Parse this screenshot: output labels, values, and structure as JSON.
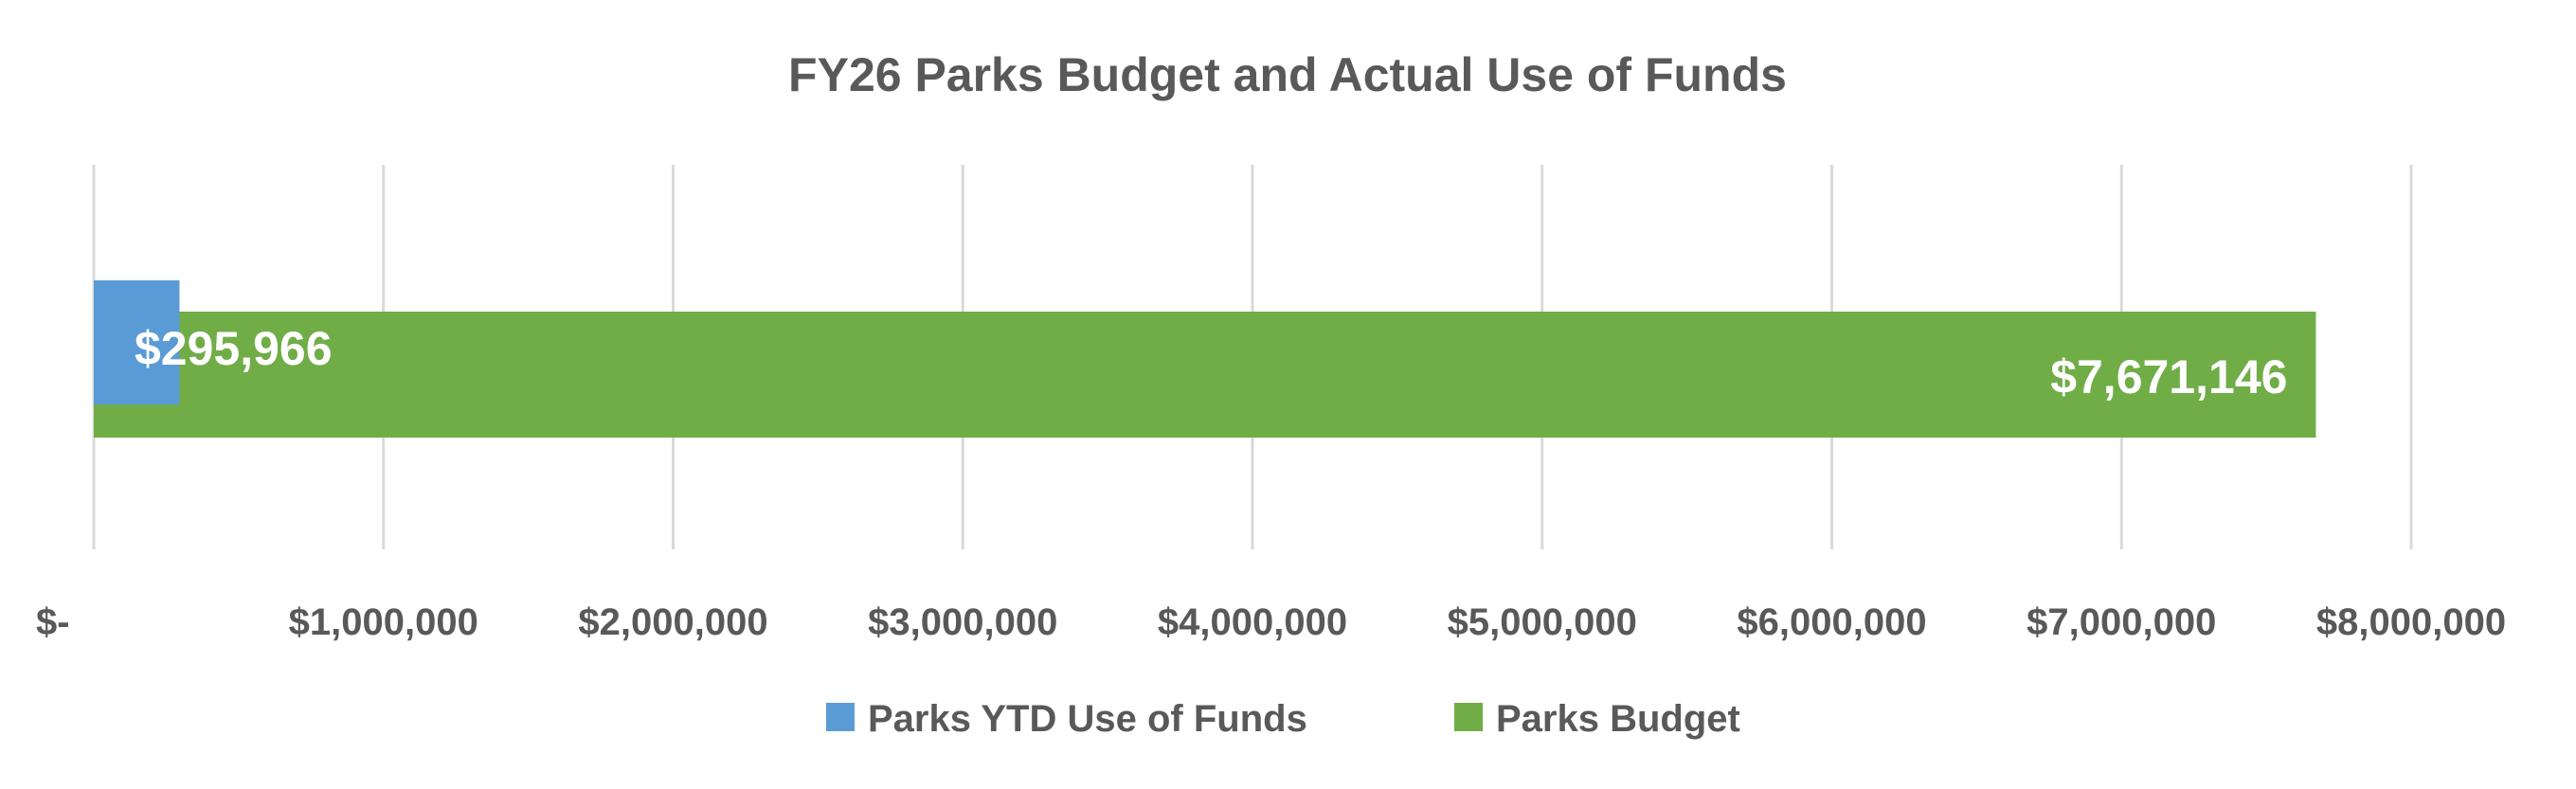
{
  "chart_data": {
    "type": "bar",
    "orientation": "horizontal",
    "title": "FY26 Parks Budget and Actual Use of Funds",
    "xlabel": "",
    "ylabel": "",
    "xlim": [
      0,
      8000000
    ],
    "tick_values": [
      0,
      1000000,
      2000000,
      3000000,
      4000000,
      5000000,
      6000000,
      7000000,
      8000000
    ],
    "tick_labels": [
      "$-",
      "$1,000,000",
      "$2,000,000",
      "$3,000,000",
      "$4,000,000",
      "$5,000,000",
      "$6,000,000",
      "$7,000,000",
      "$8,000,000"
    ],
    "grid": true,
    "legend_position": "bottom",
    "series": [
      {
        "name": "Parks YTD Use of Funds",
        "value": 295966,
        "label": "$295,966",
        "color": "#5B9BD5"
      },
      {
        "name": "Parks Budget",
        "value": 7671146,
        "label": "$7,671,146",
        "color": "#70AD47"
      }
    ]
  }
}
